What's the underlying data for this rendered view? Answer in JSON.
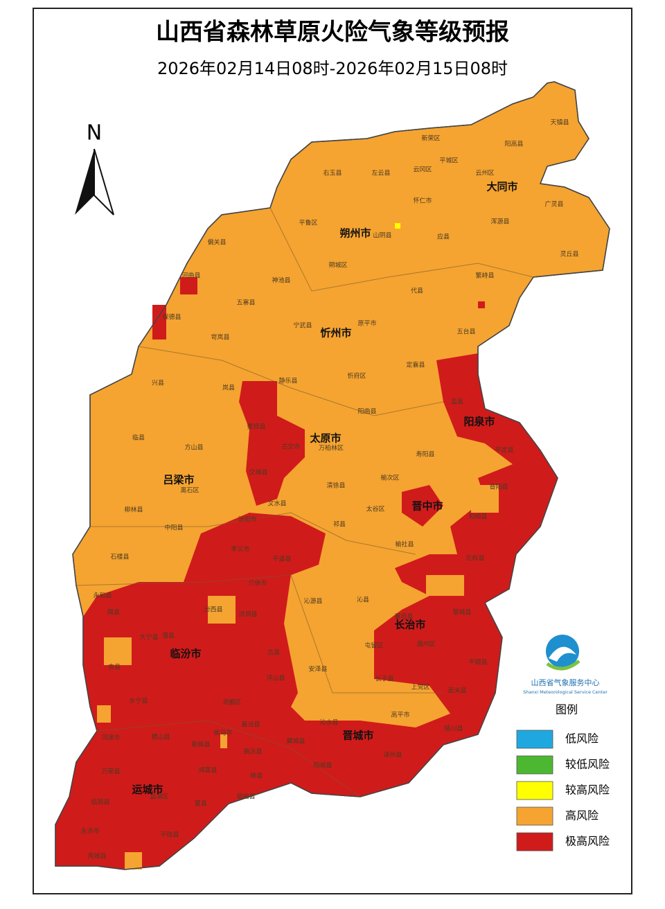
{
  "title": "山西省森林草原火险气象等级预报",
  "subtitle": "2026年02月14日08时-2026年02月15日08时",
  "north": "N",
  "cities": [
    "大同市",
    "朔州市",
    "忻州市",
    "阳泉市",
    "太原市",
    "吕梁市",
    "晋中市",
    "长治市",
    "临汾市",
    "晋城市",
    "运城市"
  ],
  "counties": [
    "天镇县",
    "阳高县",
    "新荣区",
    "平城区",
    "左云县",
    "云冈区",
    "云州区",
    "右玉县",
    "怀仁市",
    "广灵县",
    "平鲁区",
    "山阴县",
    "浑源县",
    "应县",
    "偏关县",
    "灵丘县",
    "朔城区",
    "繁峙县",
    "河曲县",
    "神池县",
    "代县",
    "五寨县",
    "保德县",
    "宁武县",
    "原平市",
    "五台县",
    "岢岚县",
    "定襄县",
    "兴县",
    "静乐县",
    "忻府区",
    "岚县",
    "盂县",
    "阳曲县",
    "娄烦县",
    "临县",
    "方山县",
    "古交市",
    "万柏林区",
    "寿阳县",
    "平定县",
    "清徐县",
    "离石区",
    "榆次区",
    "昔阳县",
    "交城县",
    "柳林县",
    "文水县",
    "太谷区",
    "和顺县",
    "中阳县",
    "汾阳市",
    "祁县",
    "石楼县",
    "孝义市",
    "平遥县",
    "榆社县",
    "左权县",
    "永和县",
    "介休市",
    "沁县",
    "汾西县",
    "洪洞县",
    "沁源县",
    "隰县",
    "襄垣县",
    "蒲县",
    "黎城县",
    "古县",
    "屯留区",
    "潞州区",
    "平顺县",
    "安泽县",
    "长子县",
    "上党区",
    "壶关县",
    "高平市",
    "陵川县",
    "沁水县",
    "浮山县",
    "襄汾县",
    "尧都区",
    "乡宁县",
    "翼城县",
    "阳城县",
    "泽州县",
    "吉县",
    "大宁县",
    "曲沃县",
    "侯马市",
    "新绛县",
    "稷山县",
    "河津市",
    "绛县",
    "垣曲县",
    "闻喜县",
    "万荣县",
    "临猗县",
    "盐湖区",
    "夏县",
    "永济市",
    "芮城县",
    "平陆县"
  ],
  "legend": {
    "title": "图例",
    "items": [
      {
        "label": "低风险",
        "color": "#1fa8e0"
      },
      {
        "label": "较低风险",
        "color": "#4cb832"
      },
      {
        "label": "较高风险",
        "color": "#ffff00"
      },
      {
        "label": "高风险",
        "color": "#f5a431"
      },
      {
        "label": "极高风险",
        "color": "#d01b1b"
      }
    ]
  },
  "logo": {
    "name": "山西省气象服务中心",
    "name_en": "Shanxi Meteorological Service Center"
  }
}
